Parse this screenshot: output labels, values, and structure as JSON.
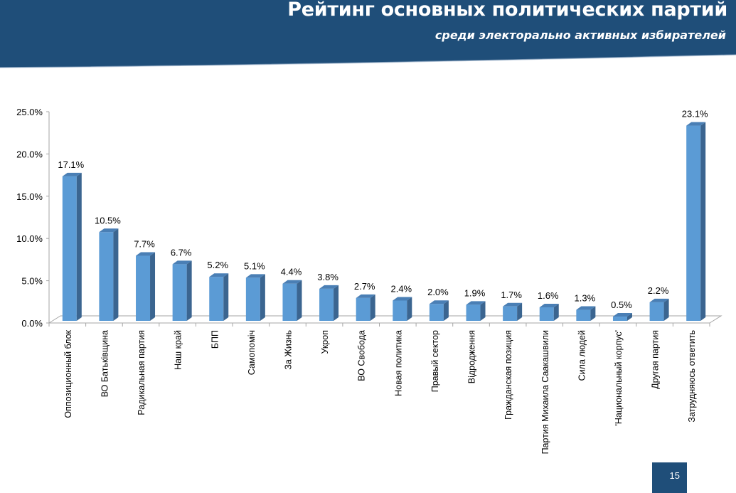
{
  "header": {
    "title": "Рейтинг основных политических партий",
    "subtitle": "среди электорально активных избирателей"
  },
  "page_number": "15",
  "colors": {
    "header_bg": "#1f4e79",
    "bar_front": "#5b9bd5",
    "bar_side": "#3b6590",
    "bar_top": "#4a7fb5",
    "axis": "#a6a6a6"
  },
  "chart_data": {
    "type": "bar",
    "title": "Рейтинг основных политических партий",
    "subtitle": "среди электорально активных избирателей",
    "xlabel": "",
    "ylabel": "",
    "ylim": [
      0,
      25
    ],
    "yticks": [
      "0.0%",
      "5.0%",
      "10.0%",
      "15.0%",
      "20.0%",
      "25.0%"
    ],
    "grid": false,
    "legend": "none",
    "style": "3D clustered column",
    "categories": [
      "Оппозиционный блок",
      "ВО Батьківщина",
      "Радикальная партия",
      "Наш край",
      "БПП",
      "Самопоміч",
      "За Жизнь",
      "Укроп",
      "ВО Свобода",
      "Новая политика",
      "Правый сектор",
      "Відродження",
      "Гражданская позиция",
      "Партия Михаила Саакашвили",
      "Сила людей",
      "'Национальный корпус'",
      "Другая партия",
      "Затрудняюсь ответить"
    ],
    "values": [
      17.1,
      10.5,
      7.7,
      6.7,
      5.2,
      5.1,
      4.4,
      3.8,
      2.7,
      2.4,
      2.0,
      1.9,
      1.7,
      1.6,
      1.3,
      0.5,
      2.2,
      23.1
    ],
    "labels": [
      "17.1%",
      "10.5%",
      "7.7%",
      "6.7%",
      "5.2%",
      "5.1%",
      "4.4%",
      "3.8%",
      "2.7%",
      "2.4%",
      "2.0%",
      "1.9%",
      "1.7%",
      "1.6%",
      "1.3%",
      "0.5%",
      "2.2%",
      "23.1%"
    ]
  }
}
